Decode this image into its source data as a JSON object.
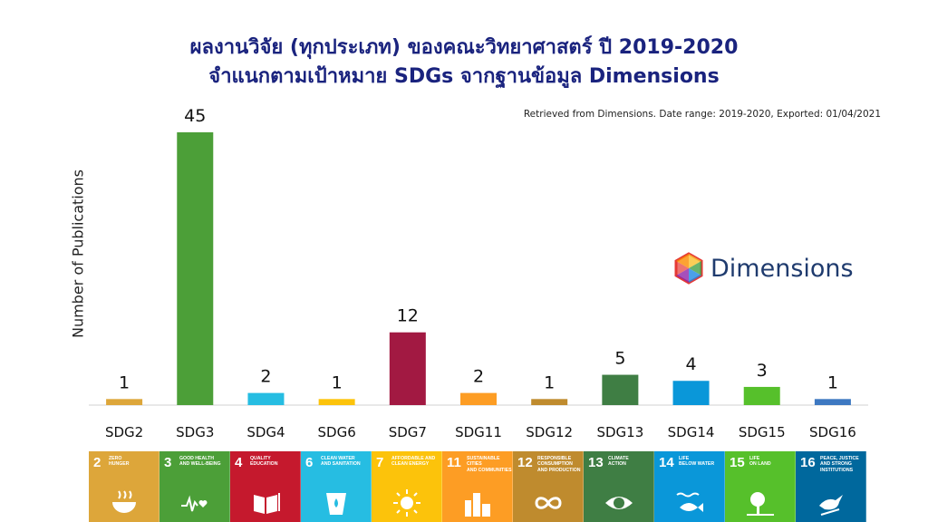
{
  "header": {
    "title_line1": "ผลงานวิจัย (ทุกประเภท) ของคณะวิทยาศาสตร์ ปี 2019-2020",
    "title_line2": "จำแนกตามเป้าหมาย SDGs จากฐานข้อมูล Dimensions",
    "source_note": "Retrieved from Dimensions. Date range: 2019-2020, Exported: 01/04/2021"
  },
  "logo": {
    "text": "Dimensions"
  },
  "chart_data": {
    "type": "bar",
    "title": "ผลงานวิจัย (ทุกประเภท) ของคณะวิทยาศาสตร์ ปี 2019-2020",
    "ylabel": "Number of Publications",
    "xlabel": "",
    "categories": [
      "SDG2",
      "SDG3",
      "SDG4",
      "SDG6",
      "SDG7",
      "SDG11",
      "SDG12",
      "SDG13",
      "SDG14",
      "SDG15",
      "SDG16"
    ],
    "values": [
      1,
      45,
      2,
      1,
      12,
      2,
      1,
      5,
      4,
      3,
      1
    ],
    "colors": [
      "#DDA63A",
      "#4C9F38",
      "#26BDE2",
      "#FCC30B",
      "#A21942",
      "#FD9D24",
      "#BF8B2E",
      "#3F7E44",
      "#0A97D9",
      "#56C02B",
      "#3D78C1"
    ],
    "ylim": [
      0,
      45
    ],
    "grid": false,
    "data_labels": true
  },
  "sdg_tiles": [
    {
      "num": "2",
      "line1": "ZERO",
      "line2": "HUNGER",
      "line3": "",
      "color": "#DDA63A",
      "icon": "bowl-icon"
    },
    {
      "num": "3",
      "line1": "GOOD HEALTH",
      "line2": "AND WELL-BEING",
      "line3": "",
      "color": "#4C9F38",
      "icon": "heartbeat-icon"
    },
    {
      "num": "4",
      "line1": "QUALITY",
      "line2": "EDUCATION",
      "line3": "",
      "color": "#C5192D",
      "icon": "book-icon"
    },
    {
      "num": "6",
      "line1": "CLEAN WATER",
      "line2": "AND SANITATION",
      "line3": "",
      "color": "#26BDE2",
      "icon": "water-icon"
    },
    {
      "num": "7",
      "line1": "AFFORDABLE AND",
      "line2": "CLEAN ENERGY",
      "line3": "",
      "color": "#FCC30B",
      "icon": "sun-icon"
    },
    {
      "num": "11",
      "line1": "SUSTAINABLE CITIES",
      "line2": "AND COMMUNITIES",
      "line3": "",
      "color": "#FD9D24",
      "icon": "city-icon"
    },
    {
      "num": "12",
      "line1": "RESPONSIBLE",
      "line2": "CONSUMPTION",
      "line3": "AND PRODUCTION",
      "color": "#BF8B2E",
      "icon": "infinity-icon"
    },
    {
      "num": "13",
      "line1": "CLIMATE",
      "line2": "ACTION",
      "line3": "",
      "color": "#3F7E44",
      "icon": "eye-globe-icon"
    },
    {
      "num": "14",
      "line1": "LIFE",
      "line2": "BELOW WATER",
      "line3": "",
      "color": "#0A97D9",
      "icon": "fish-icon"
    },
    {
      "num": "15",
      "line1": "LIFE",
      "line2": "ON LAND",
      "line3": "",
      "color": "#56C02B",
      "icon": "tree-icon"
    },
    {
      "num": "16",
      "line1": "PEACE, JUSTICE",
      "line2": "AND STRONG",
      "line3": "INSTITUTIONS",
      "color": "#00689D",
      "icon": "dove-icon"
    }
  ]
}
